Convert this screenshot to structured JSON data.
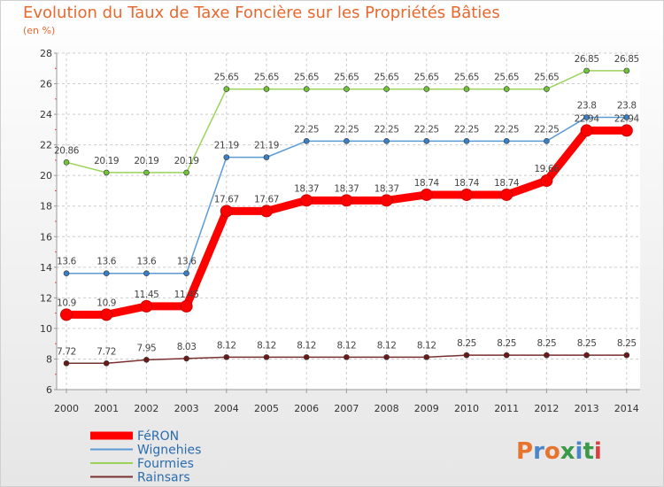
{
  "title": "Evolution du Taux de Taxe Foncière sur les Propriétés Bâties",
  "unit_label": "(en %)",
  "logo_text": "Proxiti",
  "chart_data": {
    "type": "line",
    "title": "Evolution du Taux de Taxe Foncière sur les Propriétés Bâties",
    "ylabel": "(en %)",
    "xlabel": "",
    "x": [
      "2000",
      "2001",
      "2002",
      "2003",
      "2004",
      "2005",
      "2006",
      "2007",
      "2008",
      "2009",
      "2010",
      "2011",
      "2012",
      "2013",
      "2014"
    ],
    "ylim": [
      6,
      28
    ],
    "yticks": [
      "6",
      "8",
      "10",
      "12",
      "14",
      "16",
      "18",
      "20",
      "22",
      "24",
      "26",
      "28"
    ],
    "grid": true,
    "legend": "bottom-left",
    "series": [
      {
        "name": "FéRON",
        "color": "#ff0000",
        "style": "thick",
        "values": [
          10.9,
          10.9,
          11.45,
          11.45,
          17.67,
          17.67,
          18.37,
          18.37,
          18.37,
          18.74,
          18.74,
          18.74,
          19.66,
          22.94,
          22.94
        ],
        "labels": [
          "10.9",
          "10.9",
          "11.45",
          "11.45",
          "17.67",
          "17.67",
          "18.37",
          "18.37",
          "18.37",
          "18.74",
          "18.74",
          "18.74",
          "19.66",
          "22.94",
          "22.94"
        ]
      },
      {
        "name": "Wignehies",
        "color": "#5b9bd5",
        "marker": "#3a7fc4",
        "values": [
          13.6,
          13.6,
          13.6,
          13.6,
          21.19,
          21.19,
          22.25,
          22.25,
          22.25,
          22.25,
          22.25,
          22.25,
          22.25,
          23.8,
          23.8
        ],
        "labels": [
          "13.6",
          "13.6",
          "13.6",
          "13.6",
          "21.19",
          "21.19",
          "22.25",
          "22.25",
          "22.25",
          "22.25",
          "22.25",
          "22.25",
          "22.25",
          "23.8",
          "23.8"
        ]
      },
      {
        "name": "Fourmies",
        "color": "#9bd35a",
        "marker": "#72c23a",
        "values": [
          20.86,
          20.19,
          20.19,
          20.19,
          25.65,
          25.65,
          25.65,
          25.65,
          25.65,
          25.65,
          25.65,
          25.65,
          25.65,
          26.85,
          26.85
        ],
        "labels": [
          "20.86",
          "20.19",
          "20.19",
          "20.19",
          "25.65",
          "25.65",
          "25.65",
          "25.65",
          "25.65",
          "25.65",
          "25.65",
          "25.65",
          "25.65",
          "26.85",
          "26.85"
        ]
      },
      {
        "name": "Rainsars",
        "color": "#7a2f2f",
        "marker": "#6b1a1a",
        "values": [
          7.72,
          7.72,
          7.95,
          8.03,
          8.12,
          8.12,
          8.12,
          8.12,
          8.12,
          8.12,
          8.25,
          8.25,
          8.25,
          8.25,
          8.25
        ],
        "labels": [
          "7.72",
          "7.72",
          "7.95",
          "8.03",
          "8.12",
          "8.12",
          "8.12",
          "8.12",
          "8.12",
          "8.12",
          "8.25",
          "8.25",
          "8.25",
          "8.25",
          "8.25"
        ]
      }
    ]
  }
}
